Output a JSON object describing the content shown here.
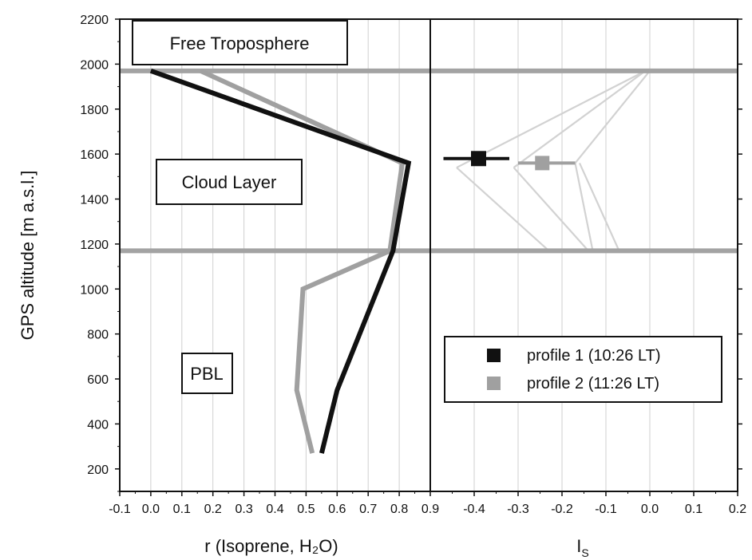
{
  "chart_data": [
    {
      "type": "line",
      "xlabel": "r (Isoprene, H₂O)",
      "ylabel": "GPS altitude [m a.s.l.]",
      "xlim": [
        -0.1,
        0.9
      ],
      "ylim": [
        100,
        2200
      ],
      "xticks": [
        -0.1,
        0.0,
        0.1,
        0.2,
        0.3,
        0.4,
        0.5,
        0.6,
        0.7,
        0.8,
        0.9
      ],
      "xtick_labels": [
        "-0.1",
        "0.0",
        "0.1",
        "0.2",
        "0.3",
        "0.4",
        "0.5",
        "0.6",
        "0.7",
        "0.8",
        "0.9"
      ],
      "yticks": [
        200,
        400,
        600,
        800,
        1000,
        1200,
        1400,
        1600,
        1800,
        2000,
        2200
      ],
      "ytick_labels": [
        "200",
        "400",
        "600",
        "800",
        "1000",
        "1200",
        "1400",
        "1600",
        "1800",
        "2000",
        "2200"
      ],
      "grid": "vertical",
      "series": [
        {
          "color": "#111111",
          "points": [
            [
              0.55,
              270
            ],
            [
              0.6,
              550
            ],
            [
              0.78,
              1170
            ],
            [
              0.83,
              1560
            ],
            [
              0.0,
              1970
            ]
          ]
        },
        {
          "color": "#a0a0a0",
          "points": [
            [
              0.52,
              270
            ],
            [
              0.47,
              550
            ],
            [
              0.49,
              1000
            ],
            [
              0.77,
              1170
            ],
            [
              0.81,
              1560
            ],
            [
              0.16,
              1970
            ]
          ]
        }
      ],
      "hlines": [
        1970,
        1170
      ],
      "annotations": [
        "Free Troposphere",
        "Cloud Layer",
        "PBL"
      ]
    },
    {
      "type": "scatter",
      "xlabel": "I",
      "xlabel_sub": "S",
      "xlim": [
        -0.5,
        0.2
      ],
      "ylim": [
        100,
        2200
      ],
      "xticks": [
        -0.4,
        -0.3,
        -0.2,
        -0.1,
        0.0,
        0.1,
        0.2
      ],
      "xtick_labels": [
        "-0.4",
        "-0.3",
        "-0.2",
        "-0.1",
        "0.0",
        "0.1",
        "0.2"
      ],
      "grid": "vertical",
      "series": [
        {
          "name": "profile 1 (10:26 LT)",
          "color": "#111111",
          "x": [
            -0.39
          ],
          "y": [
            1580
          ],
          "xerr": [
            [
              -0.47,
              -0.32
            ]
          ]
        },
        {
          "name": "profile 2 (11:26 LT)",
          "color": "#a0a0a0",
          "x": [
            -0.245
          ],
          "y": [
            1560
          ],
          "xerr": [
            [
              -0.3,
              -0.17
            ]
          ]
        }
      ],
      "background_lines": [
        [
          [
            -0.44,
            1540
          ],
          [
            -0.23,
            1170
          ]
        ],
        [
          [
            -0.44,
            1540
          ],
          [
            -0.01,
            1970
          ]
        ],
        [
          [
            -0.31,
            1540
          ],
          [
            -0.14,
            1170
          ]
        ],
        [
          [
            -0.31,
            1540
          ],
          [
            -0.01,
            1970
          ]
        ],
        [
          [
            -0.17,
            1560
          ],
          [
            -0.13,
            1170
          ]
        ],
        [
          [
            -0.17,
            1560
          ],
          [
            0.0,
            1970
          ]
        ],
        [
          [
            -0.16,
            1560
          ],
          [
            -0.07,
            1170
          ]
        ]
      ],
      "hlines": [
        1970,
        1170
      ],
      "legend": "lower-right"
    }
  ]
}
